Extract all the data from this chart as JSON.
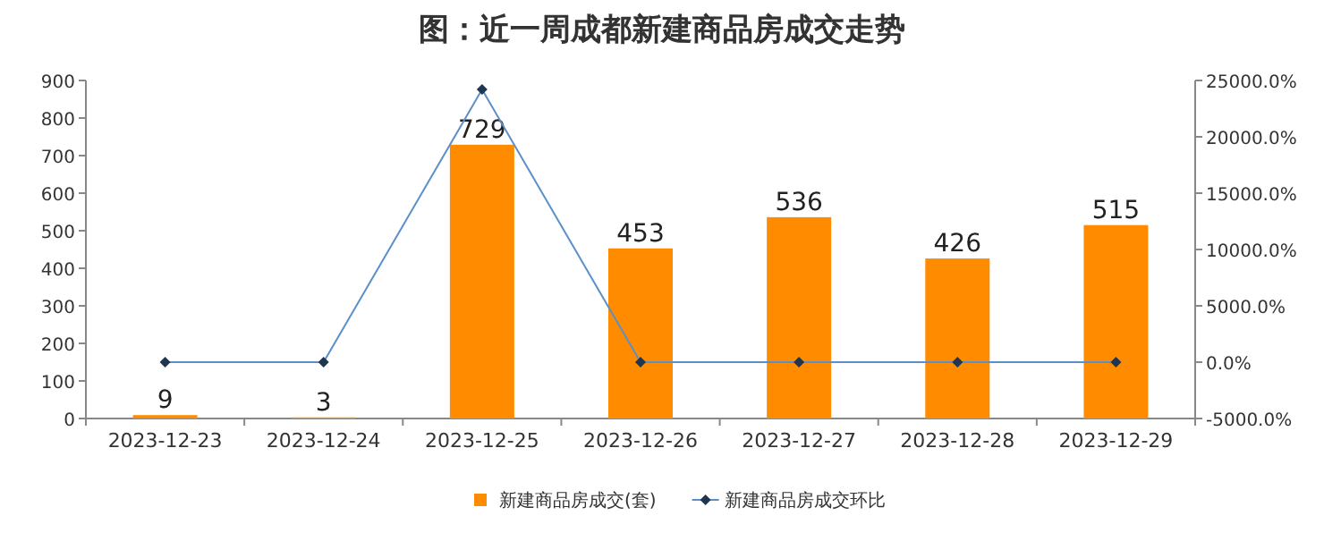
{
  "chart_data": {
    "type": "bar",
    "title": "图：近一周成都新建商品房成交走势",
    "categories": [
      "2023-12-23",
      "2023-12-24",
      "2023-12-25",
      "2023-12-26",
      "2023-12-27",
      "2023-12-28",
      "2023-12-29"
    ],
    "series": [
      {
        "name": "新建商品房成交(套)",
        "color": "#ff8c00",
        "values": [
          9,
          3,
          729,
          453,
          536,
          426,
          515
        ],
        "value_labels": [
          "9",
          "3",
          "729",
          "453",
          "536",
          "426",
          "515"
        ]
      },
      {
        "name": "新建商品房成交环比",
        "type": "line",
        "axis": "y2",
        "color": "#5b8fc9",
        "marker": "diamond",
        "values": [
          0,
          0,
          24200,
          0,
          0,
          0,
          0
        ]
      }
    ],
    "ylim": [
      0,
      900
    ],
    "yticks": [
      0,
      100,
      200,
      300,
      400,
      500,
      600,
      700,
      800,
      900
    ],
    "y2lim": [
      -5000,
      25000
    ],
    "y2ticks": [
      {
        "value": -5000,
        "label": "-5000.0%"
      },
      {
        "value": 0,
        "label": "0.0%"
      },
      {
        "value": 5000,
        "label": "5000.0%"
      },
      {
        "value": 10000,
        "label": "10000.0%"
      },
      {
        "value": 15000,
        "label": "15000.0%"
      },
      {
        "value": 20000,
        "label": "20000.0%"
      },
      {
        "value": 25000,
        "label": "25000.0%"
      }
    ],
    "grid": false,
    "legend": "bottom"
  }
}
